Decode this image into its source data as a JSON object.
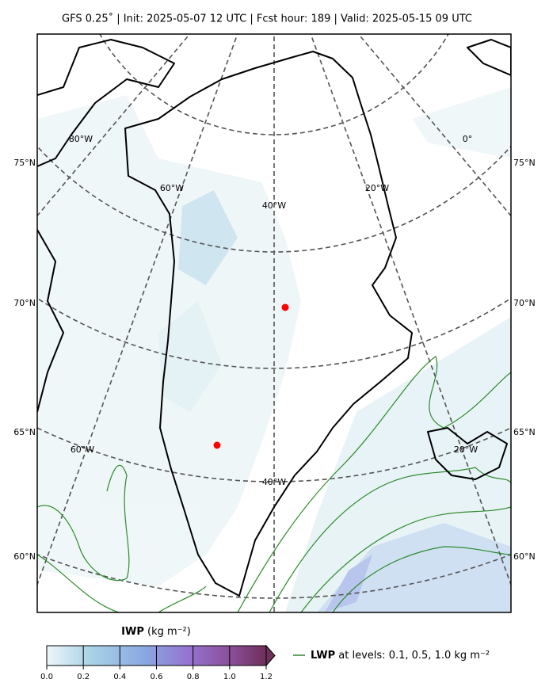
{
  "header": {
    "title": "GFS 0.25˚  |  Init: 2025-05-07 12 UTC  |  Fcst hour: 189  |  Valid: 2025-05-15 09 UTC"
  },
  "map": {
    "lat_labels": [
      "75°N",
      "70°N",
      "65°N",
      "60°N"
    ],
    "lon_labels_top": [
      "80°W",
      "60°W",
      "40°W",
      "20°W",
      "0°"
    ],
    "lon_labels_bottom": [
      "60°W",
      "40°W",
      "20°W"
    ]
  },
  "colorbar": {
    "label": "IWP",
    "unit": "(kg m⁻²)",
    "ticks": [
      {
        "value": 0,
        "label": "0.0"
      },
      {
        "value": 0.2,
        "label": "0.2"
      },
      {
        "value": 0.4,
        "label": "0.4"
      },
      {
        "value": 0.6,
        "label": "0.6"
      },
      {
        "value": 0.8,
        "label": "0.8"
      },
      {
        "value": 1.0,
        "label": "1.0"
      },
      {
        "value": 1.2,
        "label": "1.2"
      }
    ]
  },
  "legend": {
    "name": "LWP",
    "text": "at levels: 0.1, 0.5, 1.0  kg m⁻²"
  }
}
